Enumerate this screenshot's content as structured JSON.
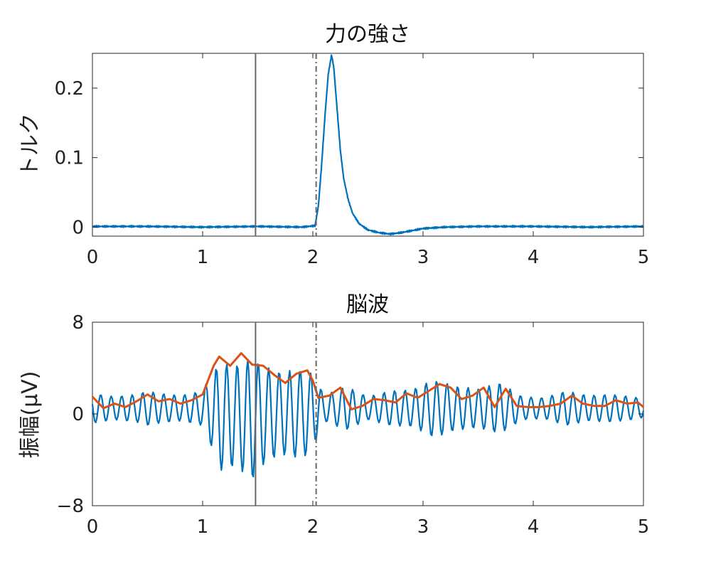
{
  "colors": {
    "force": "#0072BD",
    "signal": "#0072BD",
    "envelope": "#D95319",
    "marker": "#666666",
    "axis": "#262626"
  },
  "chart_data": [
    {
      "type": "line",
      "title": "力の強さ",
      "xlabel": "",
      "ylabel": "トルク",
      "xlim": [
        0,
        5
      ],
      "ylim": [
        -0.013,
        0.25
      ],
      "xticks": [
        "0",
        "1",
        "2",
        "3",
        "4",
        "5"
      ],
      "yticks": [
        "0",
        "0.1",
        "0.2"
      ],
      "ytick_values": [
        0,
        0.1,
        0.2
      ],
      "grid": false,
      "vlines": [
        {
          "x": 1.48,
          "style": "solid"
        },
        {
          "x": 2.03,
          "style": "dashdot"
        }
      ],
      "series": [
        {
          "color": "#0072BD",
          "x": [
            0,
            0.5,
            1.0,
            1.5,
            1.9,
            2.02,
            2.05,
            2.08,
            2.11,
            2.14,
            2.17,
            2.19,
            2.22,
            2.25,
            2.28,
            2.32,
            2.36,
            2.42,
            2.5,
            2.6,
            2.7,
            2.8,
            2.9,
            3.0,
            3.2,
            3.5,
            4.0,
            4.5,
            5.0
          ],
          "y": [
            0.001,
            0.001,
            0.0,
            0.001,
            0.0,
            0.002,
            0.03,
            0.09,
            0.16,
            0.22,
            0.248,
            0.23,
            0.17,
            0.11,
            0.07,
            0.04,
            0.02,
            0.005,
            -0.004,
            -0.008,
            -0.01,
            -0.008,
            -0.005,
            -0.002,
            0.0,
            0.001,
            0.001,
            0.0,
            0.001
          ]
        }
      ]
    },
    {
      "type": "line",
      "title": "脳波",
      "xlabel": "",
      "ylabel": "振幅(μV)",
      "xlim": [
        0,
        5
      ],
      "ylim": [
        -8,
        8
      ],
      "xticks": [
        "0",
        "1",
        "2",
        "3",
        "4",
        "5"
      ],
      "yticks": [
        "-8",
        "0",
        "8"
      ],
      "ytick_values": [
        -8,
        0,
        8
      ],
      "grid": false,
      "vlines": [
        {
          "x": 1.48,
          "style": "solid"
        },
        {
          "x": 2.03,
          "style": "dashdot"
        }
      ],
      "series": [
        {
          "color": "#0072BD",
          "x_step": 0.01,
          "oscillation_hz": 10.5,
          "baseline": 0.5,
          "envelope_x": [
            0,
            0.2,
            0.4,
            0.5,
            0.6,
            0.8,
            1.0,
            1.1,
            1.15,
            1.3,
            1.45,
            1.55,
            1.7,
            1.9,
            2.0,
            2.1,
            2.3,
            2.5,
            2.7,
            2.9,
            3.1,
            3.3,
            3.5,
            3.7,
            3.9,
            4.1,
            4.3,
            4.5,
            4.7,
            4.9,
            5.0
          ],
          "envelope_y": [
            1.3,
            1.0,
            1.2,
            1.5,
            1.3,
            1.1,
            1.5,
            3.5,
            4.7,
            4.4,
            5.3,
            4.3,
            3.6,
            3.9,
            3.3,
            1.1,
            1.9,
            1.0,
            1.5,
            1.6,
            2.5,
            1.9,
            1.7,
            2.2,
            1.0,
            0.9,
            1.5,
            1.1,
            1.2,
            1.0,
            0.8
          ]
        },
        {
          "color": "#D95319",
          "x": [
            0,
            0.1,
            0.2,
            0.3,
            0.4,
            0.5,
            0.6,
            0.7,
            0.8,
            0.9,
            1.0,
            1.1,
            1.15,
            1.25,
            1.35,
            1.45,
            1.55,
            1.65,
            1.75,
            1.85,
            1.95,
            2.0,
            2.05,
            2.15,
            2.25,
            2.35,
            2.45,
            2.55,
            2.65,
            2.75,
            2.85,
            2.95,
            3.05,
            3.15,
            3.25,
            3.35,
            3.45,
            3.55,
            3.65,
            3.75,
            3.85,
            3.95,
            4.05,
            4.15,
            4.25,
            4.35,
            4.45,
            4.55,
            4.65,
            4.75,
            4.85,
            4.95,
            5.0
          ],
          "y": [
            1.5,
            0.5,
            0.9,
            0.6,
            1.1,
            1.7,
            1.1,
            1.3,
            0.9,
            1.2,
            1.7,
            4.2,
            5.0,
            4.2,
            5.3,
            4.3,
            4.2,
            3.4,
            2.7,
            3.5,
            3.8,
            2.9,
            1.4,
            1.6,
            2.3,
            0.4,
            0.7,
            1.3,
            1.2,
            1.0,
            1.8,
            1.4,
            2.0,
            2.6,
            2.3,
            1.3,
            1.6,
            2.3,
            0.6,
            2.2,
            0.7,
            0.6,
            0.6,
            0.7,
            0.9,
            1.6,
            0.9,
            0.7,
            0.7,
            1.2,
            0.9,
            1.0,
            0.6
          ]
        }
      ]
    }
  ]
}
